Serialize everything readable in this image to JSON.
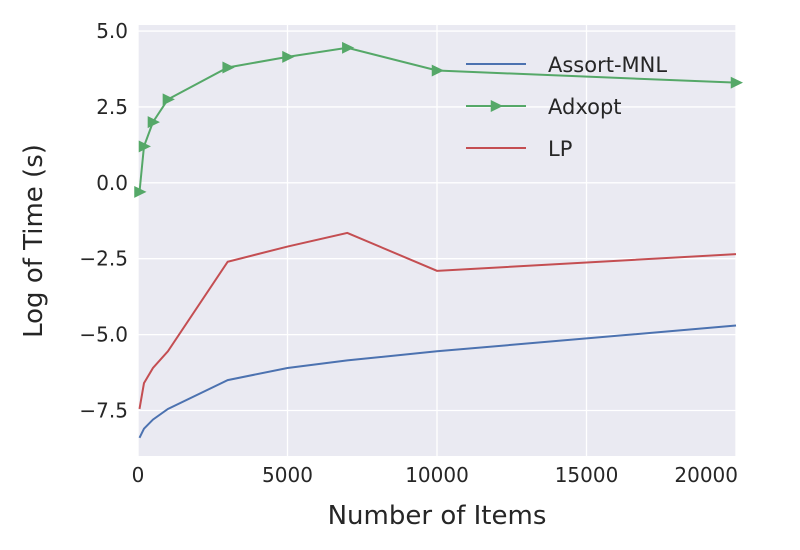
{
  "chart_data": {
    "type": "line",
    "xlabel": "Number of Items",
    "ylabel": "Log of Time (s)",
    "xlim": [
      0,
      20000
    ],
    "ylim": [
      -9.0,
      5.2
    ],
    "xticks": [
      0,
      5000,
      10000,
      15000,
      20000
    ],
    "xtick_labels": [
      "0",
      "5000",
      "10000",
      "15000",
      "20000"
    ],
    "yticks": [
      -7.5,
      -5.0,
      -2.5,
      0.0,
      2.5,
      5.0
    ],
    "ytick_labels": [
      "−7.5",
      "−5.0",
      "−2.5",
      "0.0",
      "2.5",
      "5.0"
    ],
    "grid": true,
    "legend_position": "top-right",
    "x": [
      50,
      200,
      500,
      1000,
      3000,
      5000,
      7000,
      10000,
      20000
    ],
    "series": [
      {
        "name": "Assort-MNL",
        "color": "#4c72b0",
        "marker": "none",
        "values": [
          -8.4,
          -8.1,
          -7.8,
          -7.45,
          -6.5,
          -6.1,
          -5.85,
          -5.55,
          -4.7
        ]
      },
      {
        "name": "Adxopt",
        "color": "#55a868",
        "marker": "triangle-right",
        "values": [
          -0.3,
          1.2,
          2.0,
          2.75,
          3.8,
          4.15,
          4.45,
          3.7,
          3.3
        ]
      },
      {
        "name": "LP",
        "color": "#c44e52",
        "marker": "none",
        "values": [
          -7.45,
          -6.6,
          -6.1,
          -5.55,
          -2.6,
          -2.1,
          -1.65,
          -2.9,
          -2.35
        ]
      }
    ]
  }
}
